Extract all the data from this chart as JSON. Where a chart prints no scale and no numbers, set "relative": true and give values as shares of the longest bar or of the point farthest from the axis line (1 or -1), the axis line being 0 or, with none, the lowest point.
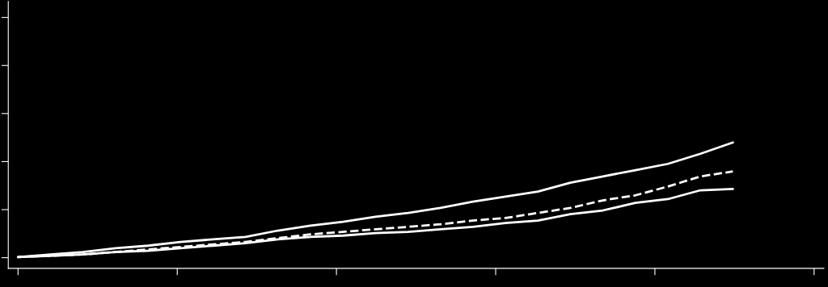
{
  "chart_data": {
    "type": "line",
    "relative": true,
    "categories": [
      null,
      null,
      null,
      null,
      null,
      null,
      null,
      null,
      null,
      null,
      null,
      null,
      null,
      null,
      null,
      null,
      null,
      null,
      null,
      null,
      null,
      null,
      null
    ],
    "series": [
      {
        "color": "#ffffff",
        "line_style": "solid",
        "values": [
          0.09,
          0.11,
          0.13,
          0.16,
          0.18,
          0.21,
          0.23,
          0.25,
          0.3,
          0.34,
          0.37,
          0.41,
          0.44,
          0.48,
          0.53,
          0.57,
          0.61,
          0.68,
          0.73,
          0.78,
          0.83,
          0.91,
          1.0
        ]
      },
      {
        "color": "#ffffff",
        "line_style": "dashed",
        "values": [
          0.09,
          0.1,
          0.11,
          0.13,
          0.15,
          0.17,
          0.19,
          0.21,
          0.24,
          0.27,
          0.29,
          0.31,
          0.33,
          0.35,
          0.38,
          0.4,
          0.44,
          0.48,
          0.54,
          0.58,
          0.65,
          0.73,
          0.77
        ]
      },
      {
        "color": "#ffffff",
        "line_style": "solid",
        "values": [
          0.09,
          0.1,
          0.11,
          0.13,
          0.14,
          0.16,
          0.18,
          0.2,
          0.23,
          0.25,
          0.26,
          0.28,
          0.29,
          0.31,
          0.33,
          0.36,
          0.38,
          0.43,
          0.46,
          0.52,
          0.55,
          0.62,
          0.63
        ]
      }
    ],
    "grid": false,
    "tick_labels": false
  }
}
